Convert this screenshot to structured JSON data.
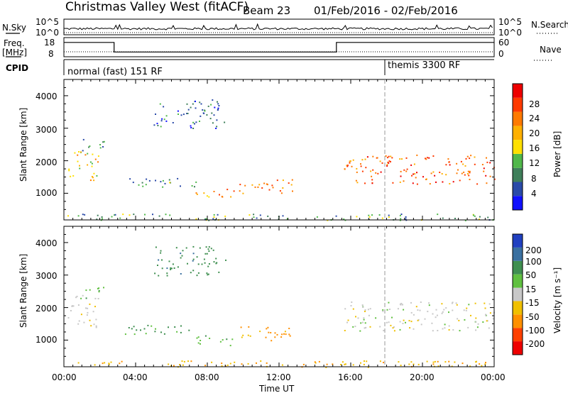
{
  "header": {
    "title": "Christmas Valley West (fitACF)",
    "beam": "Beam 23",
    "date_range": "01/Feb/2016 - 02/Feb/2016"
  },
  "noise_panel": {
    "left_label": "N.Sky",
    "left_ticks": [
      "10^5",
      "10^0"
    ],
    "right_ticks": [
      "10^5",
      "10^0"
    ],
    "right_label": "N.Search",
    "right_line_style": "dotted"
  },
  "freq_panel": {
    "left_label_top": "Freq.",
    "left_label_bottom": "[MHz]",
    "left_ticks": [
      "18",
      "8"
    ],
    "right_ticks": [
      "60",
      "0"
    ],
    "right_label": "Nave",
    "right_line_style": "dotted"
  },
  "cpid": {
    "label": "CPID",
    "segments": [
      "normal (fast) 151 RF",
      "themis 3300 RF"
    ]
  },
  "power_panel": {
    "ylabel": "Slant Range [km]",
    "yticks": [
      "4000",
      "3000",
      "2000",
      "1000"
    ],
    "colorbar_label": "Power [dB]",
    "colorbar_ticks": [
      "28",
      "24",
      "20",
      "16",
      "12",
      "8",
      "4"
    ],
    "colors": [
      "#1010ff",
      "#2a4aa8",
      "#3f7f5a",
      "#50b84a",
      "#ffe000",
      "#ffb000",
      "#ff7a00",
      "#ff3a00",
      "#ee0000"
    ]
  },
  "velocity_panel": {
    "ylabel": "Slant Range [km]",
    "yticks": [
      "4000",
      "3000",
      "2000",
      "1000"
    ],
    "colorbar_label": "Velocity [m s⁻¹]",
    "colorbar_ticks": [
      "200",
      "100",
      "50",
      "15",
      "-15",
      "-50",
      "-100",
      "-200"
    ],
    "colors": [
      "#2040c0",
      "#3a70a0",
      "#3f8f50",
      "#60c040",
      "#c8c8c8",
      "#f0c000",
      "#ff9000",
      "#ff4000",
      "#ee0000"
    ]
  },
  "x_axis": {
    "ticks": [
      "00:00",
      "04:00",
      "08:00",
      "12:00",
      "16:00",
      "20:00",
      "00:00"
    ],
    "xlabel": "Time UT"
  },
  "chart_data": {
    "type": "heatmap",
    "x_range_hours": [
      0,
      24
    ],
    "y_range_km": [
      180,
      4500
    ],
    "mode_change_hour": 18.0,
    "frequency_steps_MHz": [
      {
        "from": 0,
        "to": 2.8,
        "value": 15.5
      },
      {
        "from": 2.8,
        "to": 15.2,
        "value": 10.5
      },
      {
        "from": 15.2,
        "to": 24,
        "value": 15.5
      }
    ],
    "echo_regions": [
      {
        "name": "early-band",
        "t0": 0.2,
        "t1": 1.9,
        "r0": 1400,
        "r1": 2400,
        "power_dB": 18,
        "velocity": -10
      },
      {
        "name": "early-rise",
        "t0": 0.9,
        "t1": 2.3,
        "r0": 2300,
        "r1": 2700,
        "power_dB": 8,
        "velocity": 30
      },
      {
        "name": "arc-upper",
        "t0": 3.4,
        "t1": 7.6,
        "r0": 1200,
        "r1": 1500,
        "power_dB": 10,
        "velocity": 60
      },
      {
        "name": "patch-0830",
        "t0": 7.3,
        "t1": 9.6,
        "r0": 850,
        "r1": 1150,
        "power_dB": 22,
        "velocity": 40
      },
      {
        "name": "patch-1100",
        "t0": 9.6,
        "t1": 12.8,
        "r0": 1000,
        "r1": 1450,
        "power_dB": 24,
        "velocity": -60
      },
      {
        "name": "evening-band",
        "t0": 15.6,
        "t1": 24.0,
        "r0": 1300,
        "r1": 2200,
        "power_dB": 26,
        "velocity": 0
      },
      {
        "name": "high-range-0600",
        "t0": 5.0,
        "t1": 9.0,
        "r0": 3000,
        "r1": 3900,
        "power_dB": 6,
        "velocity": 80
      },
      {
        "name": "near-range",
        "t0": 0.0,
        "t1": 24.0,
        "r0": 180,
        "r1": 380,
        "power_dB": 10,
        "velocity": -40
      }
    ]
  }
}
